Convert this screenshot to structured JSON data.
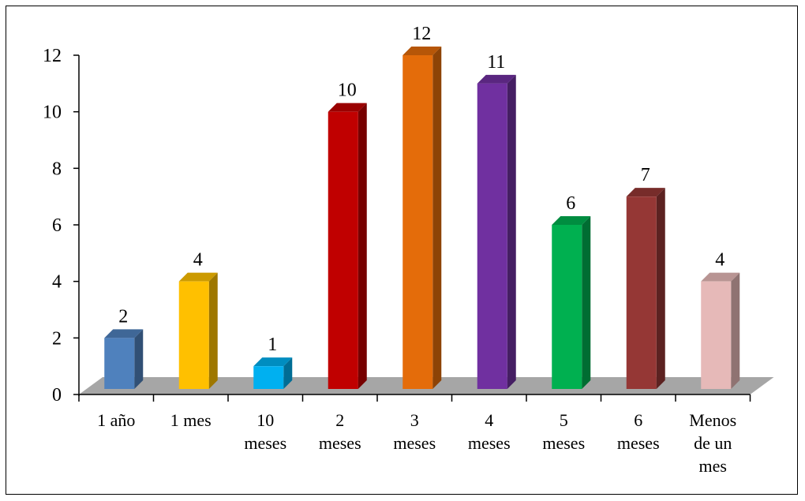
{
  "chart_data": {
    "type": "bar",
    "style": "3d-column",
    "categories": [
      [
        "1 año"
      ],
      [
        "1 mes"
      ],
      [
        "10",
        "meses"
      ],
      [
        "2",
        "meses"
      ],
      [
        "3",
        "meses"
      ],
      [
        "4",
        "meses"
      ],
      [
        "5",
        "meses"
      ],
      [
        "6",
        "meses"
      ],
      [
        "Menos",
        "de un",
        "mes"
      ]
    ],
    "values": [
      2,
      4,
      1,
      10,
      12,
      11,
      6,
      7,
      4
    ],
    "colors": [
      "#4f81bd",
      "#ffc000",
      "#00b0f0",
      "#c00000",
      "#e46c0a",
      "#7030a0",
      "#00b050",
      "#953735",
      "#e6b9b8"
    ],
    "ylim": [
      0,
      12
    ],
    "yticks": [
      0,
      2,
      4,
      6,
      8,
      10,
      12
    ],
    "grid": false,
    "legend": "none",
    "floor_color": "#a6a6a6"
  }
}
